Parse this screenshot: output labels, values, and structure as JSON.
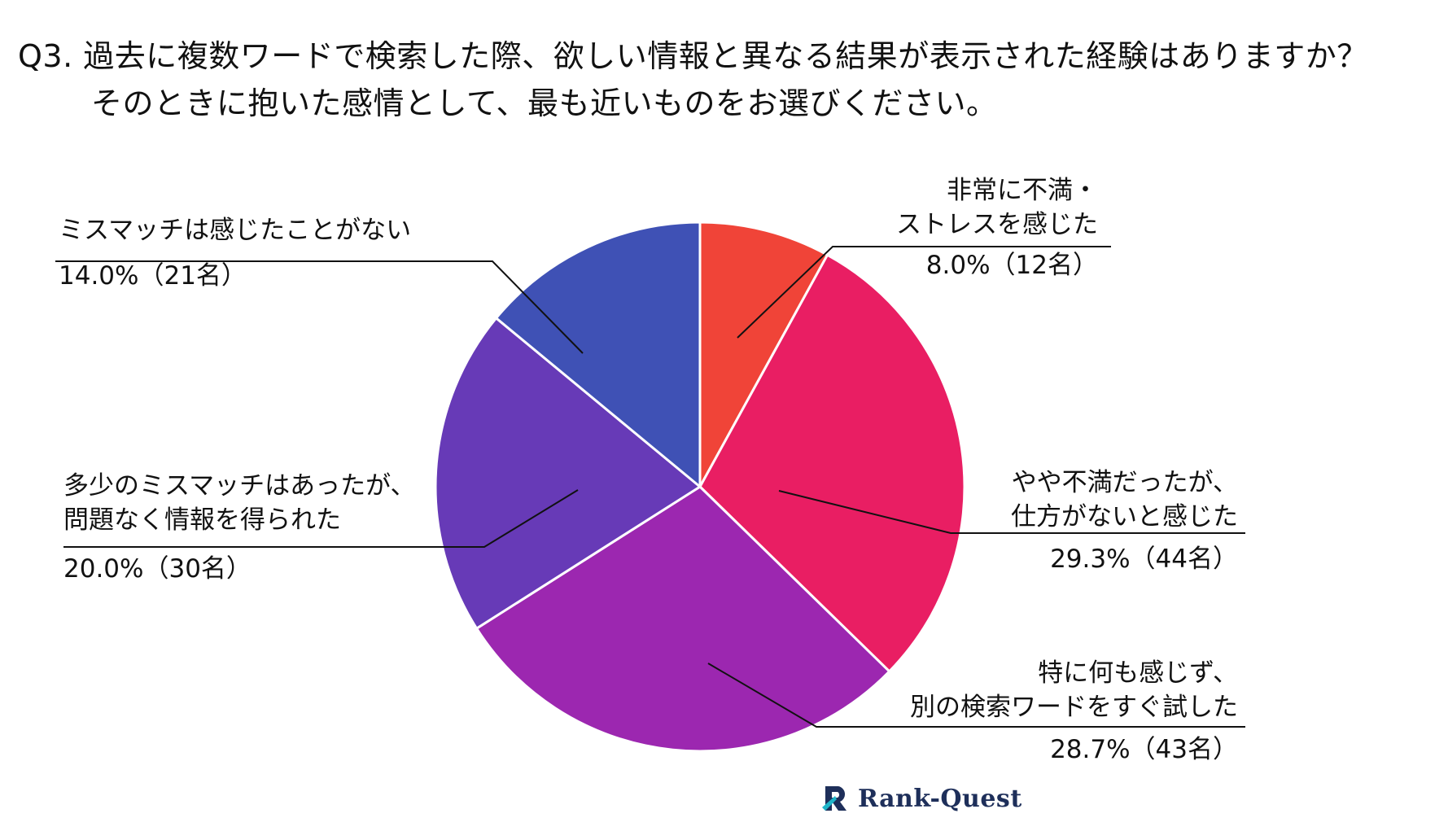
{
  "title": {
    "line1": "Q3. 過去に複数ワードで検索した際、欲しい情報と異なる結果が表示された経験はありますか？",
    "line2": "そのときに抱いた感情として、最も近いものをお選びください。"
  },
  "chart_data": {
    "type": "pie",
    "title": "Q3. 過去に複数ワードで検索した際、欲しい情報と異なる結果が表示された経験はありますか？ そのときに抱いた感情として、最も近いものをお選びください。",
    "start": "top, clockwise",
    "slices": [
      {
        "label_line1": "非常に不満・",
        "label_line2": "ストレスを感じた",
        "value": 8.0,
        "count": 12,
        "pct_text": "8.0%（12名）",
        "color": "#f04438"
      },
      {
        "label_line1": "やや不満だったが、",
        "label_line2": "仕方がないと感じた",
        "value": 29.3,
        "count": 44,
        "pct_text": "29.3%（44名）",
        "color": "#e91e63"
      },
      {
        "label_line1": "特に何も感じず、",
        "label_line2": "別の検索ワードをすぐ試した",
        "value": 28.7,
        "count": 43,
        "pct_text": "28.7%（43名）",
        "color": "#9c27b0"
      },
      {
        "label_line1": "多少のミスマッチはあったが、",
        "label_line2": "問題なく情報を得られた",
        "value": 20.0,
        "count": 30,
        "pct_text": "20.0%（30名）",
        "color": "#673ab7"
      },
      {
        "label_line1": "ミスマッチは感じたことがない",
        "label_line2": "",
        "value": 14.0,
        "count": 21,
        "pct_text": "14.0%（21名）",
        "color": "#3f51b5"
      }
    ]
  },
  "logo": {
    "text": "Rank-Quest",
    "icon": "rank-quest-logo-icon",
    "color": "#1e2f5a",
    "accent": "#1fb5c9"
  }
}
